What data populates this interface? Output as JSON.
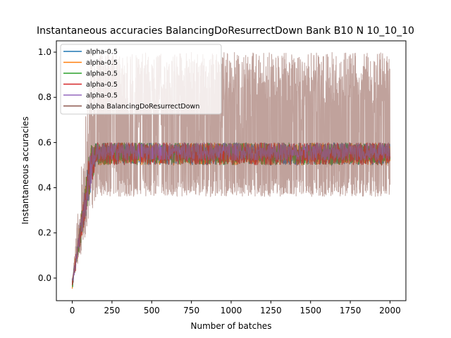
{
  "chart_data": {
    "type": "line",
    "title": "Instantaneous accuracies BalancingDoResurrectDown Bank B10 N 10_10_10",
    "xlabel": "Number of batches",
    "ylabel": "Instantaneous accuracies",
    "xlim": [
      -100,
      2100
    ],
    "ylim": [
      -0.1,
      1.05
    ],
    "xticks": [
      0,
      250,
      500,
      750,
      1000,
      1250,
      1500,
      1750,
      2000
    ],
    "yticks": [
      0.0,
      0.2,
      0.4,
      0.6,
      0.8,
      1.0
    ],
    "xtick_labels": [
      "0",
      "250",
      "500",
      "750",
      "1000",
      "1250",
      "1500",
      "1750",
      "2000"
    ],
    "ytick_labels": [
      "0.0",
      "0.2",
      "0.4",
      "0.6",
      "0.8",
      "1.0"
    ],
    "grid": false,
    "legend_position": "upper-left",
    "series": [
      {
        "name": "alpha-0.5",
        "color": "#1f77b4",
        "x_range": [
          0,
          2000
        ],
        "settle_x": 150,
        "y_band": [
          0.5,
          0.6
        ],
        "start_y": 0.0
      },
      {
        "name": "alpha-0.5",
        "color": "#ff7f0e",
        "x_range": [
          0,
          2000
        ],
        "settle_x": 150,
        "y_band": [
          0.5,
          0.6
        ],
        "start_y": 0.0
      },
      {
        "name": "alpha-0.5",
        "color": "#2ca02c",
        "x_range": [
          0,
          2000
        ],
        "settle_x": 150,
        "y_band": [
          0.5,
          0.6
        ],
        "start_y": 0.0
      },
      {
        "name": "alpha-0.5",
        "color": "#d62728",
        "x_range": [
          0,
          2000
        ],
        "settle_x": 150,
        "y_band": [
          0.5,
          0.6
        ],
        "start_y": 0.0
      },
      {
        "name": "alpha-0.5",
        "color": "#9467bd",
        "x_range": [
          0,
          2000
        ],
        "settle_x": 150,
        "y_band": [
          0.52,
          0.6
        ],
        "start_y": 0.0
      },
      {
        "name": "alpha BalancingDoResurrectDown",
        "color": "#8c564b",
        "x_range": [
          0,
          2000
        ],
        "settle_x": 150,
        "y_band": [
          0.36,
          1.0
        ],
        "start_y": 0.0
      }
    ]
  }
}
